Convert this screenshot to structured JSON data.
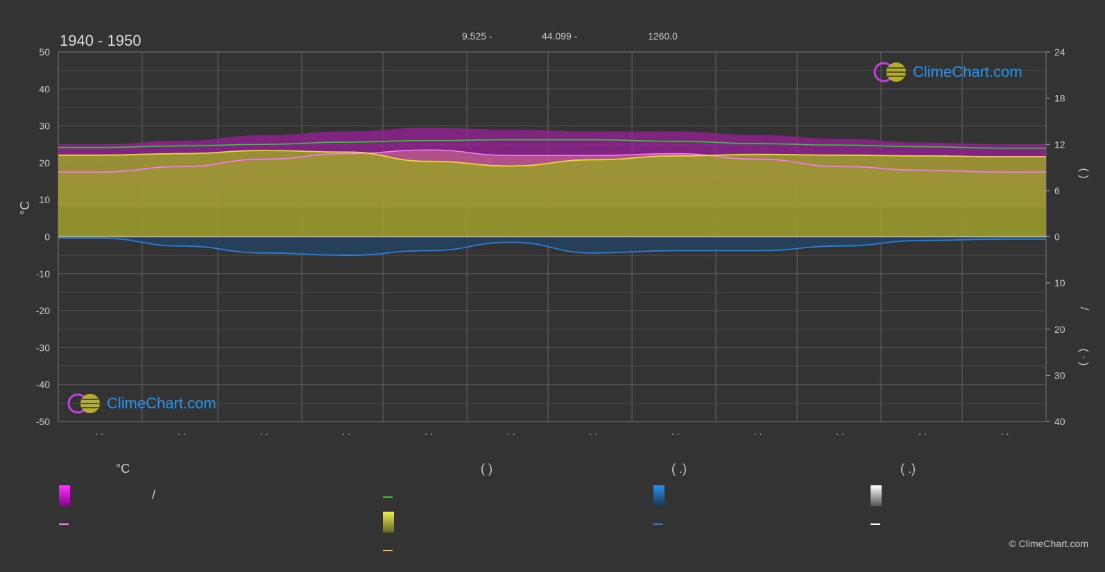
{
  "header": {
    "period": "1940 - 1950",
    "lat": "9.525 -",
    "lon": "44.099 -",
    "elev": "1260.0"
  },
  "axes": {
    "left_label": "°C",
    "left_ticks": [
      "50",
      "40",
      "30",
      "20",
      "10",
      "0",
      "-10",
      "-20",
      "-30",
      "-40",
      "-50"
    ],
    "right_ticks_top": [
      "24",
      "18",
      "12",
      "6",
      "0"
    ],
    "right_ticks_bottom": [
      "10",
      "20",
      "30",
      "40"
    ],
    "right_label_top": "(   )",
    "right_label_mid": "/",
    "right_label_bottom": "( · )",
    "month_labels": [
      "· ·",
      "· ·",
      "· ·",
      "· ·",
      "· ·",
      "· ·",
      "· ·",
      "· ·",
      "· ·",
      "· ·",
      "· ·",
      "· ·"
    ]
  },
  "logo": {
    "text": "ClimeChart.com"
  },
  "legend": {
    "col1_head": "°C",
    "col1_item1_sep": "/",
    "col2_head": "(         )",
    "col3_head": "(   .)",
    "col4_head": "(   .)"
  },
  "copyright": "© ClimeChart.com",
  "colors": {
    "background": "#333333",
    "grid": "#555555",
    "temp_range": "#c020c0",
    "temp_mean_fill": "#d070a0",
    "sunshine_fill": "#a0a030",
    "daylight_line": "#33cc33",
    "sunshine_line": "#e0d040",
    "temp_mean_line": "#ff77ff",
    "precip_line": "#2a7fd4",
    "precip_bars": "#1f4d72"
  },
  "chart_data": {
    "type": "line",
    "x": [
      "Jan",
      "Feb",
      "Mar",
      "Apr",
      "May",
      "Jun",
      "Jul",
      "Aug",
      "Sep",
      "Oct",
      "Nov",
      "Dec"
    ],
    "ylim_left": [
      -50,
      50
    ],
    "ylim_right_hours": [
      0,
      24
    ],
    "ylim_right_precip_mm": [
      0,
      40
    ],
    "series": [
      {
        "key": "daylight_hours",
        "axis": "right_hours",
        "values": [
          11.6,
          11.8,
          12.0,
          12.3,
          12.5,
          12.6,
          12.6,
          12.4,
          12.1,
          11.9,
          11.7,
          11.5
        ]
      },
      {
        "key": "sunshine_hours",
        "axis": "right_hours",
        "values": [
          10.6,
          10.8,
          11.2,
          11.0,
          9.8,
          9.2,
          10.0,
          10.5,
          10.7,
          10.6,
          10.5,
          10.4
        ]
      },
      {
        "key": "mean_temp",
        "axis": "left",
        "values": [
          17.5,
          19.0,
          21.0,
          22.5,
          23.5,
          22.0,
          22.0,
          22.5,
          21.0,
          19.0,
          18.0,
          17.5
        ]
      },
      {
        "key": "max_temp_band",
        "axis": "left",
        "values": [
          25,
          26,
          27.5,
          28.5,
          29.5,
          29,
          28.5,
          28.5,
          27.5,
          26.5,
          25.5,
          25
        ]
      },
      {
        "key": "precip_mm",
        "axis": "right_precip",
        "values": [
          0.3,
          2.0,
          3.5,
          4.0,
          3.0,
          1.2,
          3.5,
          3.0,
          3.0,
          2.0,
          0.8,
          0.5
        ]
      }
    ]
  }
}
